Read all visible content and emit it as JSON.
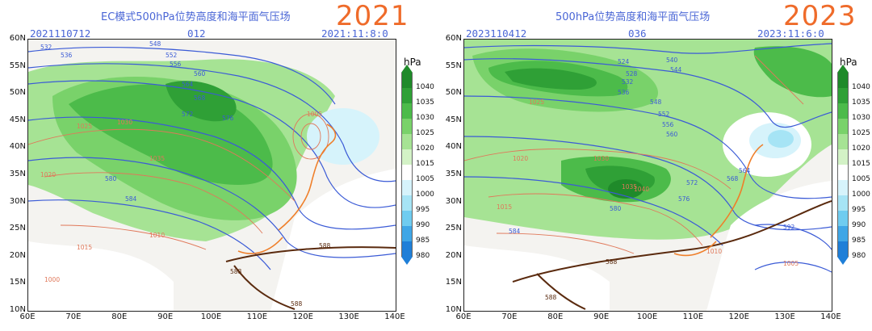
{
  "left": {
    "title": "EC模式500hPa位势高度和海平面气压场",
    "year": "2021",
    "init_time": "2021110712",
    "forecast_hour": "012",
    "valid_time": "2021:11:8:0",
    "contour_labels": [
      {
        "text": "532",
        "kind": "hgt"
      },
      {
        "text": "536",
        "kind": "hgt"
      },
      {
        "text": "548",
        "kind": "hgt"
      },
      {
        "text": "552",
        "kind": "hgt"
      },
      {
        "text": "556",
        "kind": "hgt"
      },
      {
        "text": "560",
        "kind": "hgt"
      },
      {
        "text": "564",
        "kind": "hgt"
      },
      {
        "text": "568",
        "kind": "hgt"
      },
      {
        "text": "572",
        "kind": "hgt"
      },
      {
        "text": "576",
        "kind": "hgt"
      },
      {
        "text": "580",
        "kind": "hgt"
      },
      {
        "text": "584",
        "kind": "hgt"
      },
      {
        "text": "588",
        "kind": "hgt588"
      },
      {
        "text": "588",
        "kind": "hgt588"
      },
      {
        "text": "588",
        "kind": "hgt588"
      },
      {
        "text": "1015",
        "kind": "slp"
      },
      {
        "text": "1020",
        "kind": "slp"
      },
      {
        "text": "1025",
        "kind": "slp"
      },
      {
        "text": "1030",
        "kind": "slp"
      },
      {
        "text": "1035",
        "kind": "slp"
      },
      {
        "text": "1010",
        "kind": "slp"
      },
      {
        "text": "1005",
        "kind": "slp"
      },
      {
        "text": "1000",
        "kind": "slp"
      }
    ]
  },
  "right": {
    "title": "500hPa位势高度和海平面气压场",
    "year": "2023",
    "init_time": "2023110412",
    "forecast_hour": "036",
    "valid_time": "2023:11:6:0",
    "contour_labels": [
      {
        "text": "524",
        "kind": "hgt"
      },
      {
        "text": "528",
        "kind": "hgt"
      },
      {
        "text": "532",
        "kind": "hgt"
      },
      {
        "text": "536",
        "kind": "hgt"
      },
      {
        "text": "540",
        "kind": "hgt"
      },
      {
        "text": "544",
        "kind": "hgt"
      },
      {
        "text": "548",
        "kind": "hgt"
      },
      {
        "text": "552",
        "kind": "hgt"
      },
      {
        "text": "556",
        "kind": "hgt"
      },
      {
        "text": "560",
        "kind": "hgt"
      },
      {
        "text": "564",
        "kind": "hgt"
      },
      {
        "text": "568",
        "kind": "hgt"
      },
      {
        "text": "572",
        "kind": "hgt"
      },
      {
        "text": "576",
        "kind": "hgt"
      },
      {
        "text": "580",
        "kind": "hgt"
      },
      {
        "text": "584",
        "kind": "hgt"
      },
      {
        "text": "592",
        "kind": "hgt"
      },
      {
        "text": "588",
        "kind": "hgt588"
      },
      {
        "text": "588",
        "kind": "hgt588"
      },
      {
        "text": "1015",
        "kind": "slp"
      },
      {
        "text": "1020",
        "kind": "slp"
      },
      {
        "text": "1025",
        "kind": "slp"
      },
      {
        "text": "1030",
        "kind": "slp"
      },
      {
        "text": "1035",
        "kind": "slp"
      },
      {
        "text": "1040",
        "kind": "slp"
      },
      {
        "text": "1010",
        "kind": "slp"
      },
      {
        "text": "1005",
        "kind": "slp"
      }
    ]
  },
  "axes": {
    "lat_labels": [
      "60N",
      "55N",
      "50N",
      "45N",
      "40N",
      "35N",
      "30N",
      "25N",
      "20N",
      "15N",
      "10N"
    ],
    "lon_labels": [
      "60E",
      "70E",
      "80E",
      "90E",
      "100E",
      "110E",
      "120E",
      "130E",
      "140E"
    ]
  },
  "colorbar": {
    "unit": "hPa",
    "levels": [
      "1040",
      "1035",
      "1030",
      "1025",
      "1020",
      "1015",
      "1005",
      "1000",
      "995",
      "990",
      "985",
      "980"
    ],
    "colors": [
      "#1f8a2a",
      "#2fa036",
      "#4cbb4a",
      "#79d26a",
      "#a6e394",
      "#d3f2c6",
      "#ffffff",
      "#d6f3fb",
      "#a6e4f5",
      "#6fccf0",
      "#3fa6e6",
      "#1f7fd8"
    ]
  },
  "colors": {
    "height_contour": "#3b5bd6",
    "height_588": "#5a2a0e",
    "slp_contour": "#e0785a",
    "coast": "#ef7f2a",
    "title_blue": "#4a66d6",
    "year_orange": "#ef6b2a"
  }
}
